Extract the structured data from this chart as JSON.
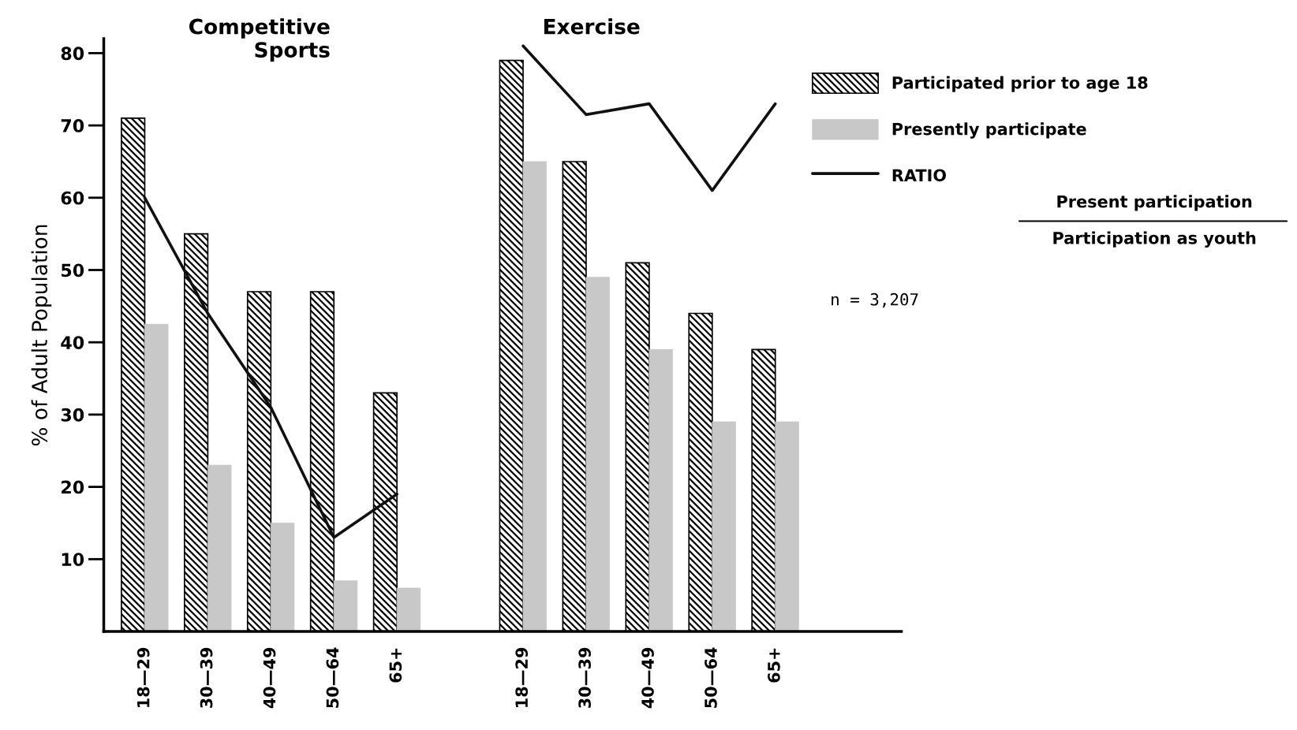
{
  "chart_data": {
    "type": "bar",
    "ylabel": "% of Adult Population",
    "categories": [
      "18—29",
      "30—39",
      "40—49",
      "50—64",
      "65+",
      null,
      "18—29",
      "30—39",
      "40—49",
      "50—64",
      "65+"
    ],
    "series": [
      {
        "name": "Participated prior to age 18",
        "color": "#000000",
        "values": [
          71,
          55,
          47,
          47,
          33,
          null,
          79,
          65,
          51,
          44,
          39
        ]
      },
      {
        "name": "Presently participate",
        "color": "#c8c8c8",
        "values": [
          42.5,
          23,
          15,
          7,
          6,
          null,
          65,
          49,
          39,
          29,
          29
        ]
      },
      {
        "name": "RATIO",
        "type": "line",
        "color": "#111111",
        "values": [
          60,
          44,
          31,
          13,
          19,
          null,
          81,
          71.5,
          73,
          61,
          73
        ]
      }
    ],
    "ylim": [
      0,
      82
    ],
    "yticks": [
      10,
      20,
      30,
      40,
      50,
      60,
      70,
      80
    ],
    "legend": "right",
    "grid": false,
    "marker": "none",
    "line_style": "solid",
    "annotations": [
      "Competitive\nSports",
      "Exercise",
      "Present participation",
      "Participation as youth",
      "n = 3,207"
    ]
  }
}
